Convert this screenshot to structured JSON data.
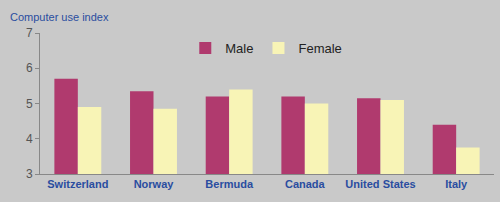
{
  "chart_data": {
    "type": "bar",
    "ylabel": "Computer use index",
    "categories": [
      "Switzerland",
      "Norway",
      "Bermuda",
      "Canada",
      "United States",
      "Italy"
    ],
    "series": [
      {
        "name": "Male",
        "color": "#b03a6e",
        "values": [
          5.7,
          5.35,
          5.2,
          5.2,
          5.15,
          4.4
        ]
      },
      {
        "name": "Female",
        "color": "#f8f4b6",
        "values": [
          4.9,
          4.85,
          5.4,
          5.0,
          5.1,
          3.75
        ]
      }
    ],
    "ylim": [
      3,
      7
    ],
    "yticks": [
      3,
      4,
      5,
      6,
      7
    ],
    "grid": false,
    "legend": "upper center"
  }
}
